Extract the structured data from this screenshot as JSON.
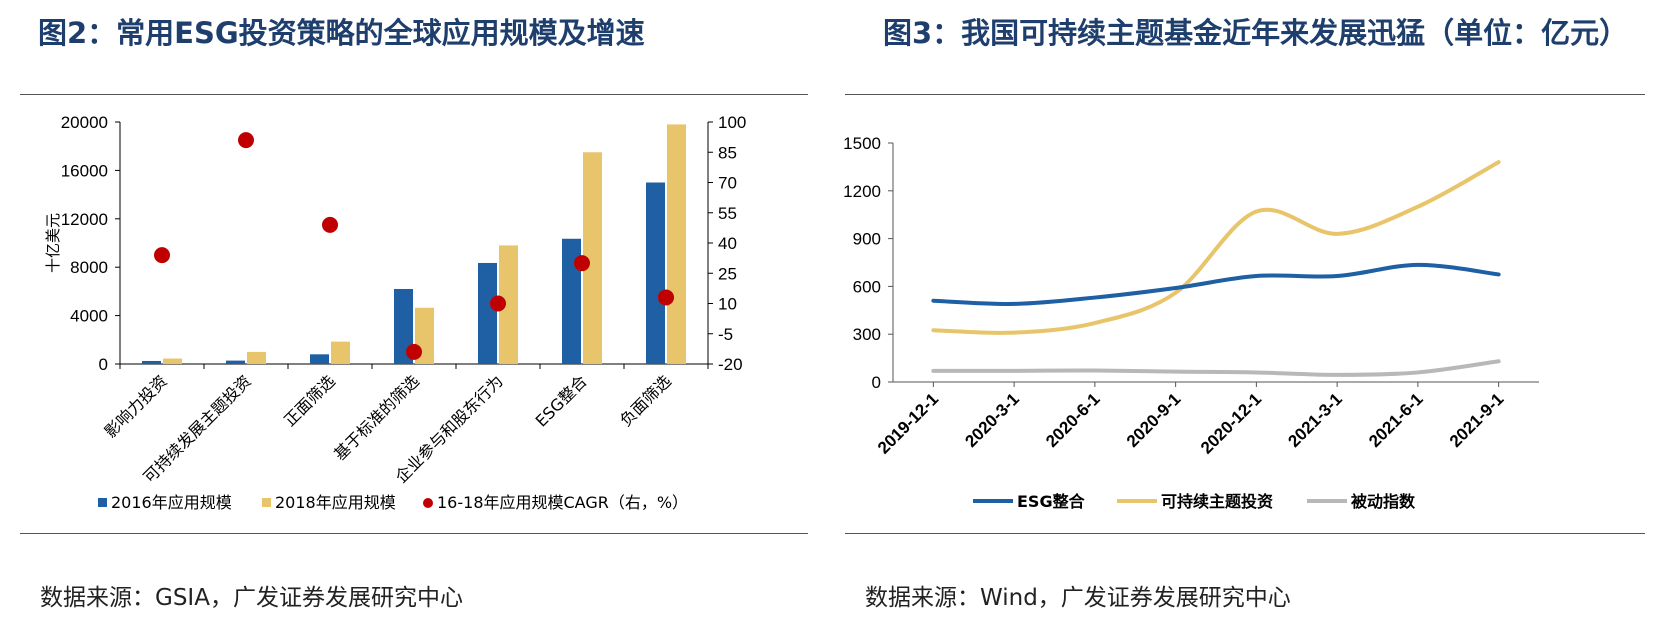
{
  "left": {
    "title": "图2：常用ESG投资策略的全球应用规模及增速",
    "source": "数据来源：GSIA，广发证券发展研究中心"
  },
  "right": {
    "title": "图3：我国可持续主题基金近年来发展迅猛（单位：亿元）",
    "source": "数据来源：Wind，广发证券发展研究中心"
  },
  "chart_data": [
    {
      "type": "bar",
      "title": "常用ESG投资策略的全球应用规模及增速",
      "ylabel": "十亿美元",
      "ylim": [
        0,
        20000
      ],
      "y_ticks": [
        0,
        4000,
        8000,
        12000,
        16000,
        20000
      ],
      "y2lim": [
        -20,
        100
      ],
      "y2_ticks": [
        -20,
        -5,
        10,
        25,
        40,
        55,
        70,
        85,
        100
      ],
      "categories": [
        "影响力投资",
        "可持续发展主题投资",
        "正面筛选",
        "基于标准的筛选",
        "企业参与和股东行为",
        "ESG整合",
        "负面筛选"
      ],
      "series": [
        {
          "name": "2016年应用规模",
          "kind": "bar",
          "axis": "left",
          "color": "#1f5fa3",
          "values": [
            250,
            280,
            800,
            6200,
            8350,
            10350,
            15000
          ]
        },
        {
          "name": "2018年应用规模",
          "kind": "bar",
          "axis": "left",
          "color": "#e8c46a",
          "values": [
            450,
            1000,
            1850,
            4650,
            9800,
            17500,
            19800
          ]
        },
        {
          "name": "16-18年应用规模CAGR（右，%）",
          "kind": "scatter",
          "axis": "right",
          "color": "#c00000",
          "values": [
            34,
            91,
            49,
            -14,
            10,
            30,
            13
          ]
        }
      ],
      "legend_position": "bottom",
      "grid": false
    },
    {
      "type": "line",
      "title": "我国可持续主题基金近年来发展迅猛",
      "ylim": [
        0,
        1500
      ],
      "y_ticks": [
        0,
        300,
        600,
        900,
        1200,
        1500
      ],
      "x": [
        "2019-12-1",
        "2020-3-1",
        "2020-6-1",
        "2020-9-1",
        "2020-12-1",
        "2021-3-1",
        "2021-6-1",
        "2021-9-1"
      ],
      "series": [
        {
          "name": "ESG整合",
          "color": "#1f5fa3",
          "values": [
            510,
            490,
            530,
            590,
            665,
            665,
            735,
            675
          ]
        },
        {
          "name": "可持续主题投资",
          "color": "#e8c46a",
          "values": [
            325,
            310,
            370,
            560,
            1070,
            930,
            1100,
            1380
          ]
        },
        {
          "name": "被动指数",
          "color": "#b8b8b8",
          "values": [
            70,
            70,
            72,
            65,
            60,
            45,
            60,
            130
          ]
        }
      ],
      "legend_position": "bottom",
      "grid": false
    }
  ]
}
